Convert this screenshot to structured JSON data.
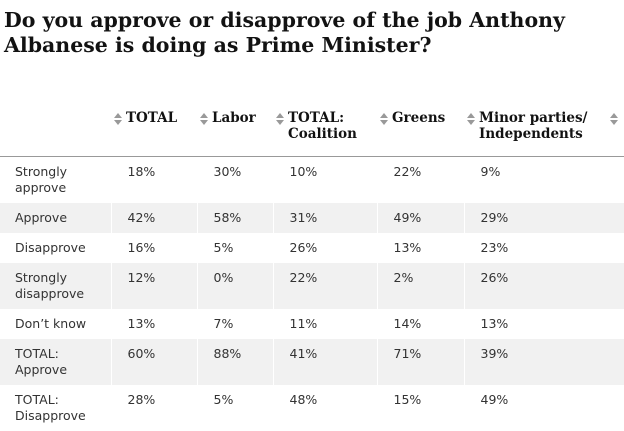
{
  "title": "Do you approve or disapprove of the job Anthony Albanese is doing as Prime Minister?",
  "chart_data": {
    "type": "table",
    "columns": [
      "TOTAL",
      "Labor",
      "TOTAL: Coalition",
      "Greens",
      "Minor parties/ Independents"
    ],
    "rows": [
      {
        "label": "Strongly approve",
        "values": [
          "18%",
          "30%",
          "10%",
          "22%",
          "9%"
        ]
      },
      {
        "label": "Approve",
        "values": [
          "42%",
          "58%",
          "31%",
          "49%",
          "29%"
        ]
      },
      {
        "label": "Disapprove",
        "values": [
          "16%",
          "5%",
          "26%",
          "13%",
          "23%"
        ]
      },
      {
        "label": "Strongly disapprove",
        "values": [
          "12%",
          "0%",
          "22%",
          "2%",
          "26%"
        ]
      },
      {
        "label": "Don’t know",
        "values": [
          "13%",
          "7%",
          "11%",
          "14%",
          "13%"
        ]
      },
      {
        "label": "TOTAL: Approve",
        "values": [
          "60%",
          "88%",
          "41%",
          "71%",
          "39%"
        ]
      },
      {
        "label": "TOTAL: Disapprove",
        "values": [
          "28%",
          "5%",
          "48%",
          "15%",
          "49%"
        ]
      }
    ]
  },
  "colors": {
    "shade": "#f1f1f1",
    "text": "#121212",
    "rule": "#999999",
    "sort_icon": "#999999"
  },
  "icons": {
    "sort": "sort-arrows-icon"
  }
}
